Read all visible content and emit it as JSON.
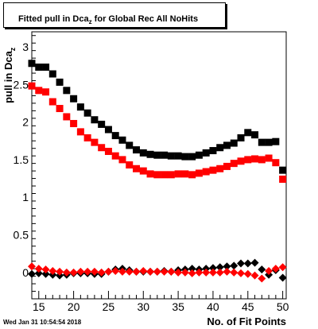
{
  "chart_data": {
    "type": "scatter",
    "title_prefix": "Fitted pull in Dca",
    "title_sub": "z",
    "title_suffix": " for Global Rec All NoHits",
    "ylabel_prefix": "pull in Dca",
    "ylabel_sub": "z",
    "xlabel": "No. of Fit Points",
    "xlim": [
      14,
      50.5
    ],
    "ylim": [
      -0.35,
      3.2
    ],
    "xticks": [
      15,
      20,
      25,
      30,
      35,
      40,
      45,
      50
    ],
    "yticks": [
      0,
      0.5,
      1,
      1.5,
      2,
      2.5,
      3
    ],
    "ytick_labels": [
      "0",
      "0.5",
      "1",
      "1.5",
      "2",
      "2.5",
      "3"
    ],
    "x": [
      14,
      15,
      16,
      17,
      18,
      19,
      20,
      21,
      22,
      23,
      24,
      25,
      26,
      27,
      28,
      29,
      30,
      31,
      32,
      33,
      34,
      35,
      36,
      37,
      38,
      39,
      40,
      41,
      42,
      43,
      44,
      45,
      46,
      47,
      48,
      49,
      50
    ],
    "series": [
      {
        "marker": "square",
        "color": "#000000",
        "values": [
          2.78,
          2.73,
          2.73,
          2.64,
          2.53,
          2.42,
          2.31,
          2.2,
          2.12,
          2.03,
          1.97,
          1.9,
          1.82,
          1.76,
          1.69,
          1.63,
          1.59,
          1.57,
          1.56,
          1.56,
          1.55,
          1.55,
          1.54,
          1.54,
          1.56,
          1.59,
          1.62,
          1.66,
          1.69,
          1.72,
          1.79,
          1.86,
          1.83,
          1.73,
          1.73,
          1.74,
          1.36
        ]
      },
      {
        "marker": "square",
        "color": "#ff0000",
        "values": [
          2.48,
          2.42,
          2.4,
          2.27,
          2.18,
          2.07,
          1.98,
          1.87,
          1.79,
          1.73,
          1.66,
          1.61,
          1.55,
          1.5,
          1.43,
          1.38,
          1.35,
          1.31,
          1.3,
          1.3,
          1.3,
          1.31,
          1.31,
          1.3,
          1.32,
          1.34,
          1.36,
          1.38,
          1.41,
          1.45,
          1.48,
          1.5,
          1.51,
          1.5,
          1.52,
          1.46,
          1.24
        ]
      },
      {
        "marker": "diamond",
        "color": "#000000",
        "values": [
          -0.02,
          -0.01,
          -0.02,
          -0.03,
          -0.04,
          -0.03,
          -0.01,
          -0.01,
          -0.01,
          -0.02,
          -0.02,
          0.01,
          0.04,
          0.05,
          0.03,
          0.01,
          0.01,
          0.01,
          0.01,
          0.02,
          0.01,
          0.03,
          0.04,
          0.05,
          0.04,
          0.05,
          0.06,
          0.07,
          0.08,
          0.09,
          0.12,
          0.12,
          0.13,
          0.04,
          -0.03,
          0.03,
          -0.07
        ]
      },
      {
        "marker": "diamond",
        "color": "#ff0000",
        "values": [
          0.08,
          0.05,
          0.04,
          0.02,
          0.01,
          0.0,
          0.0,
          0.01,
          0.01,
          0.01,
          0.0,
          0.01,
          0.02,
          0.01,
          0.01,
          0.01,
          0.02,
          0.01,
          0.01,
          0.01,
          0.01,
          0.0,
          0.0,
          -0.01,
          0.0,
          0.0,
          0.0,
          0.0,
          0.01,
          0.0,
          -0.01,
          -0.02,
          -0.04,
          -0.08,
          0.02,
          0.05,
          0.07
        ]
      }
    ]
  },
  "footer": {
    "datestamp": "Wed Jan 31 10:54:54 2018"
  }
}
